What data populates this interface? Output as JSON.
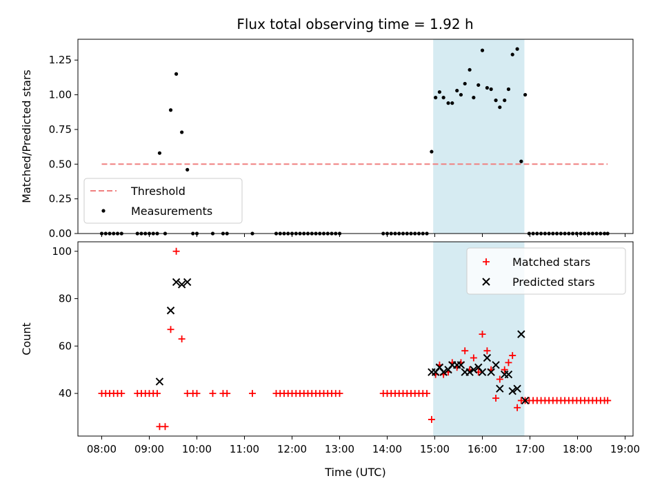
{
  "title": "Flux total observing time = 1.92 h",
  "colors": {
    "threshold": "#f08080",
    "measurement": "#000000",
    "matched": "#ff0000",
    "predicted": "#000000",
    "highlight": "#add8e6"
  },
  "chart_data": [
    {
      "type": "scatter",
      "panel": "top",
      "ylabel": "Matched/Predicted stars",
      "xlim": [
        "07:30",
        "19:10"
      ],
      "ylim": [
        0,
        1.4
      ],
      "yticks": [
        "0.00",
        "0.25",
        "0.50",
        "0.75",
        "1.00",
        "1.25"
      ],
      "highlight_span": [
        "14:58",
        "16:53"
      ],
      "legend": {
        "position": "lower-left",
        "entries": [
          "Threshold",
          "Measurements"
        ]
      },
      "threshold": {
        "name": "Threshold",
        "y": 0.5,
        "x": [
          "08:00",
          "18:38"
        ]
      },
      "series": [
        {
          "name": "Measurements",
          "x": [
            "08:00",
            "08:05",
            "08:10",
            "08:15",
            "08:20",
            "08:25",
            "08:45",
            "08:50",
            "08:55",
            "09:00",
            "09:05",
            "09:10",
            "09:13",
            "09:20",
            "09:27",
            "09:34",
            "09:41",
            "09:48",
            "09:55",
            "10:00",
            "10:20",
            "10:33",
            "10:38",
            "11:10",
            "11:40",
            "11:45",
            "11:50",
            "11:55",
            "12:00",
            "12:05",
            "12:10",
            "12:15",
            "12:20",
            "12:25",
            "12:30",
            "12:35",
            "12:40",
            "12:45",
            "12:50",
            "12:55",
            "13:00",
            "13:55",
            "14:00",
            "14:05",
            "14:10",
            "14:15",
            "14:20",
            "14:25",
            "14:30",
            "14:35",
            "14:40",
            "14:45",
            "14:50",
            "14:56",
            "15:01",
            "15:06",
            "15:11",
            "15:17",
            "15:22",
            "15:28",
            "15:33",
            "15:38",
            "15:44",
            "15:49",
            "15:55",
            "16:00",
            "16:06",
            "16:11",
            "16:17",
            "16:22",
            "16:28",
            "16:33",
            "16:38",
            "16:44",
            "16:49",
            "16:54",
            "16:59",
            "17:04",
            "17:09",
            "17:14",
            "17:19",
            "17:24",
            "17:29",
            "17:34",
            "17:39",
            "17:44",
            "17:49",
            "17:54",
            "17:59",
            "18:04",
            "18:09",
            "18:14",
            "18:19",
            "18:24",
            "18:29",
            "18:34",
            "18:38"
          ],
          "y": [
            0,
            0,
            0,
            0,
            0,
            0,
            0,
            0,
            0,
            0,
            0,
            0,
            0.58,
            0,
            0.89,
            1.15,
            0.73,
            0.46,
            0,
            0,
            0,
            0,
            0,
            0,
            0,
            0,
            0,
            0,
            0,
            0,
            0,
            0,
            0,
            0,
            0,
            0,
            0,
            0,
            0,
            0,
            0,
            0,
            0,
            0,
            0,
            0,
            0,
            0,
            0,
            0,
            0,
            0,
            0,
            0.59,
            0.98,
            1.02,
            0.98,
            0.94,
            0.94,
            1.03,
            1.0,
            1.08,
            1.18,
            0.98,
            1.07,
            1.32,
            1.05,
            1.04,
            0.96,
            0.91,
            0.96,
            1.04,
            1.29,
            1.33,
            0.52,
            1.0,
            0,
            0,
            0,
            0,
            0,
            0,
            0,
            0,
            0,
            0,
            0,
            0,
            0,
            0,
            0,
            0,
            0,
            0,
            0,
            0,
            0
          ]
        }
      ]
    },
    {
      "type": "scatter",
      "panel": "bottom",
      "xlabel": "Time (UTC)",
      "ylabel": "Count",
      "xlim": [
        "07:30",
        "19:10"
      ],
      "ylim": [
        22,
        104
      ],
      "xticks": [
        "08:00",
        "09:00",
        "10:00",
        "11:00",
        "12:00",
        "13:00",
        "14:00",
        "15:00",
        "16:00",
        "17:00",
        "18:00",
        "19:00"
      ],
      "yticks": [
        "40",
        "60",
        "80",
        "100"
      ],
      "highlight_span": [
        "14:58",
        "16:53"
      ],
      "legend": {
        "position": "top-right",
        "entries": [
          "Matched stars",
          "Predicted stars"
        ]
      },
      "series": [
        {
          "name": "Matched stars",
          "x": [
            "08:00",
            "08:05",
            "08:10",
            "08:15",
            "08:20",
            "08:25",
            "08:45",
            "08:50",
            "08:55",
            "09:00",
            "09:05",
            "09:10",
            "09:13",
            "09:20",
            "09:27",
            "09:34",
            "09:41",
            "09:48",
            "09:55",
            "10:00",
            "10:20",
            "10:33",
            "10:38",
            "11:10",
            "11:40",
            "11:45",
            "11:50",
            "11:55",
            "12:00",
            "12:05",
            "12:10",
            "12:15",
            "12:20",
            "12:25",
            "12:30",
            "12:35",
            "12:40",
            "12:45",
            "12:50",
            "12:55",
            "13:00",
            "13:55",
            "14:00",
            "14:05",
            "14:10",
            "14:15",
            "14:20",
            "14:25",
            "14:30",
            "14:35",
            "14:40",
            "14:45",
            "14:50",
            "14:56",
            "15:01",
            "15:06",
            "15:11",
            "15:17",
            "15:22",
            "15:28",
            "15:33",
            "15:38",
            "15:44",
            "15:49",
            "15:55",
            "16:00",
            "16:06",
            "16:11",
            "16:17",
            "16:22",
            "16:28",
            "16:33",
            "16:38",
            "16:44",
            "16:49",
            "16:54",
            "16:59",
            "17:04",
            "17:09",
            "17:14",
            "17:19",
            "17:24",
            "17:29",
            "17:34",
            "17:39",
            "17:44",
            "17:49",
            "17:54",
            "17:59",
            "18:04",
            "18:09",
            "18:14",
            "18:19",
            "18:24",
            "18:29",
            "18:34",
            "18:38"
          ],
          "y": [
            40,
            40,
            40,
            40,
            40,
            40,
            40,
            40,
            40,
            40,
            40,
            40,
            26,
            26,
            67,
            100,
            63,
            40,
            40,
            40,
            40,
            40,
            40,
            40,
            40,
            40,
            40,
            40,
            40,
            40,
            40,
            40,
            40,
            40,
            40,
            40,
            40,
            40,
            40,
            40,
            40,
            40,
            40,
            40,
            40,
            40,
            40,
            40,
            40,
            40,
            40,
            40,
            40,
            29,
            48,
            52,
            48,
            49,
            53,
            51,
            53,
            58,
            50,
            55,
            49,
            65,
            58,
            50,
            38,
            46,
            50,
            53,
            56,
            34,
            37,
            37,
            37,
            37,
            37,
            37,
            37,
            37,
            37,
            37,
            37,
            37,
            37,
            37,
            37,
            37,
            37,
            37,
            37,
            37,
            37,
            37,
            37
          ]
        },
        {
          "name": "Predicted stars",
          "x": [
            "09:13",
            "09:27",
            "09:34",
            "09:41",
            "09:48",
            "14:56",
            "15:01",
            "15:06",
            "15:11",
            "15:17",
            "15:22",
            "15:28",
            "15:33",
            "15:38",
            "15:44",
            "15:49",
            "15:55",
            "16:00",
            "16:06",
            "16:11",
            "16:17",
            "16:22",
            "16:28",
            "16:33",
            "16:38",
            "16:44",
            "16:49",
            "16:54"
          ],
          "y": [
            45,
            75,
            87,
            86,
            87,
            49,
            49,
            51,
            49,
            50,
            52,
            52,
            52,
            49,
            49,
            50,
            51,
            49,
            55,
            49,
            52,
            42,
            48,
            48,
            41,
            42,
            65,
            37
          ]
        }
      ]
    }
  ]
}
